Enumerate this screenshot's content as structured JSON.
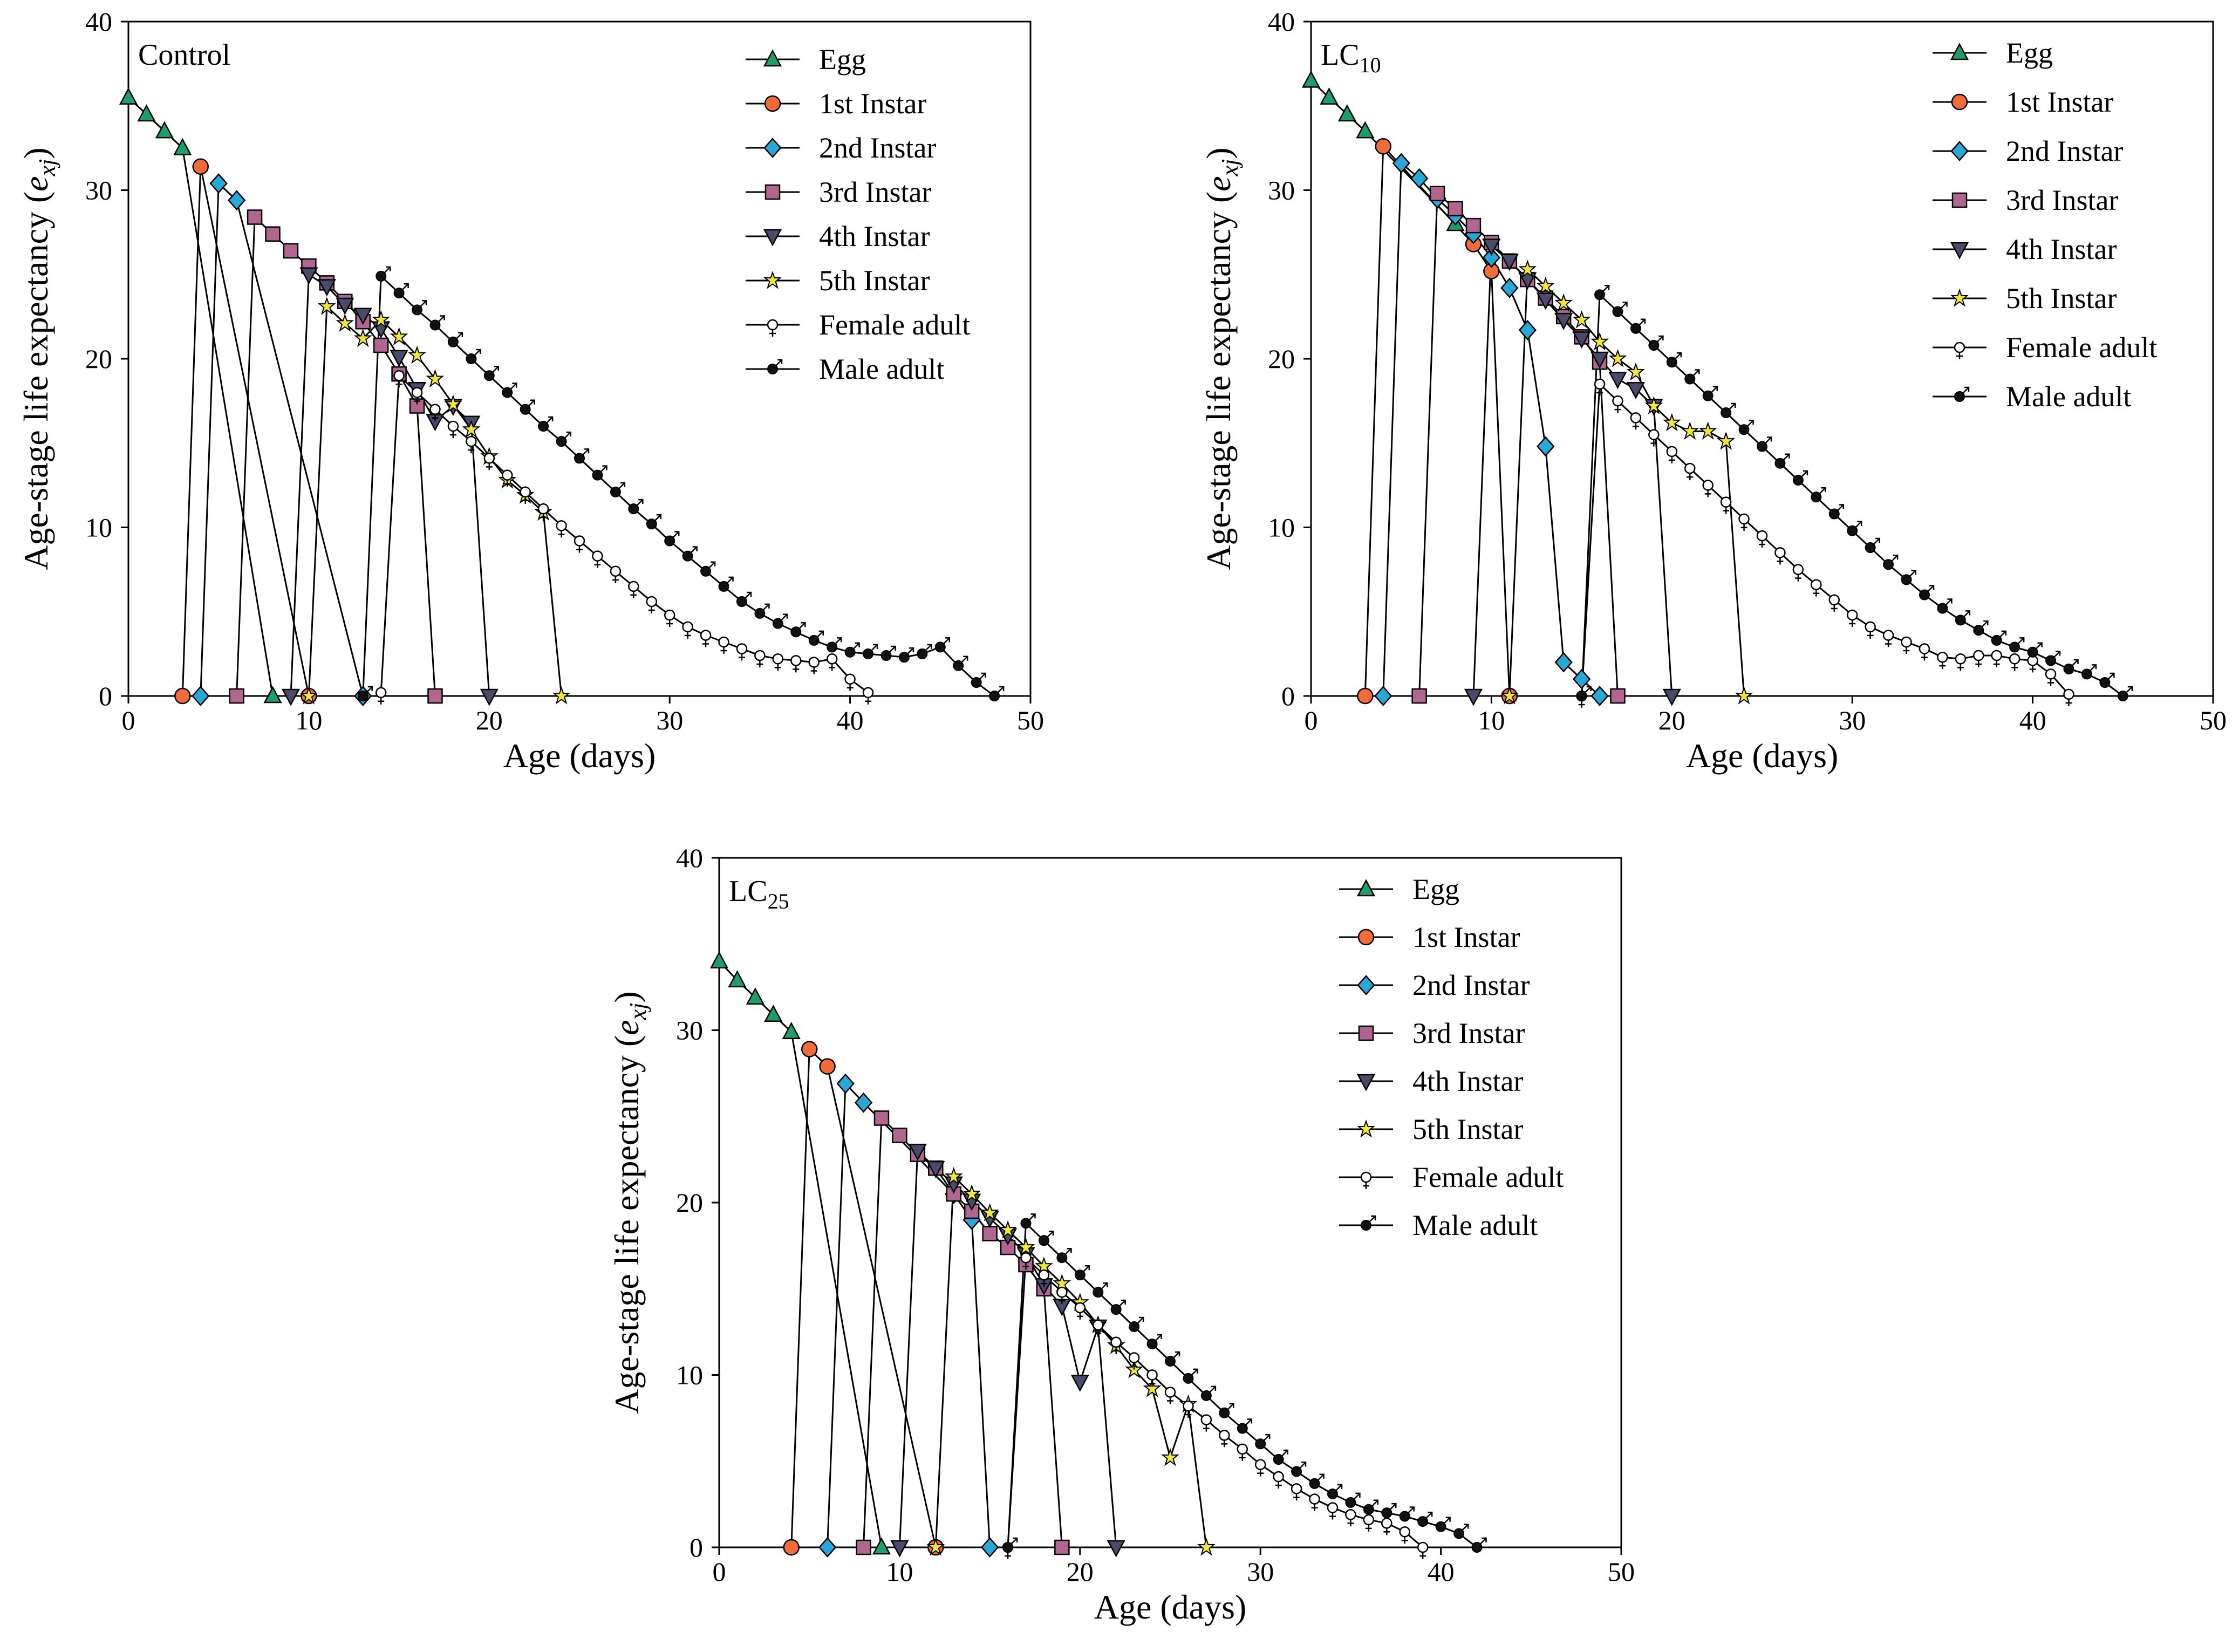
{
  "figure": {
    "ylabel_main": "Age-stage life expectancy (",
    "ylabel_var": "e",
    "ylabel_sub": "xj",
    "ylabel_close": ")",
    "xlabel": "Age (days)"
  },
  "chart_data": [
    {
      "type": "line",
      "title": "Control",
      "title_sub": "",
      "xlabel": "Age (days)",
      "ylabel": "Age-stage life expectancy (exj)",
      "xlim": [
        0,
        50
      ],
      "ylim": [
        0,
        40
      ],
      "xticks": [
        0,
        10,
        20,
        30,
        40,
        50
      ],
      "yticks": [
        0,
        10,
        20,
        30,
        40
      ],
      "legend_position": "top-right",
      "series": [
        {
          "name": "Egg",
          "marker": "triangle",
          "color": "#1f9d6a",
          "x": [
            0,
            1,
            2,
            3,
            8
          ],
          "y": [
            35.5,
            34.5,
            33.5,
            32.5,
            0
          ]
        },
        {
          "name": "1st Instar",
          "marker": "circle",
          "color": "#f26b3a",
          "x": [
            3,
            4,
            10
          ],
          "y": [
            0,
            31.4,
            0
          ]
        },
        {
          "name": "2nd Instar",
          "marker": "diamond",
          "color": "#2aa7d6",
          "x": [
            4,
            5,
            6,
            13
          ],
          "y": [
            0,
            30.4,
            29.4,
            0
          ]
        },
        {
          "name": "3rd Instar",
          "marker": "square",
          "color": "#b0668f",
          "x": [
            6,
            7,
            8,
            9,
            10,
            11,
            12,
            13,
            14,
            15,
            16,
            17
          ],
          "y": [
            0,
            28.4,
            27.4,
            26.4,
            25.5,
            24.5,
            23.4,
            22.2,
            20.8,
            19.1,
            17.2,
            0
          ]
        },
        {
          "name": "4th Instar",
          "marker": "triangle-down",
          "color": "#4a4a6a",
          "x": [
            9,
            10,
            11,
            12,
            13,
            14,
            15,
            16,
            17,
            18,
            19,
            20
          ],
          "y": [
            0,
            25,
            24.3,
            23.2,
            22.6,
            21.8,
            20.1,
            18.2,
            16.3,
            17.2,
            16.2,
            0
          ]
        },
        {
          "name": "5th Instar",
          "marker": "star",
          "color": "#f0e63c",
          "x": [
            10,
            11,
            12,
            13,
            14,
            15,
            16,
            17,
            18,
            19,
            20,
            21,
            22,
            23,
            24
          ],
          "y": [
            0,
            23.1,
            22.1,
            21.2,
            22.3,
            21.3,
            20.2,
            18.8,
            17.3,
            15.8,
            14.2,
            12.8,
            11.9,
            10.9,
            0
          ]
        },
        {
          "name": "Female adult",
          "marker": "female",
          "color": "#ffffff",
          "x": [
            14,
            15,
            16,
            17,
            18,
            19,
            20,
            21,
            22,
            23,
            24,
            25,
            26,
            27,
            28,
            29,
            30,
            31,
            32,
            33,
            34,
            35,
            36,
            37,
            38,
            39,
            40,
            41
          ],
          "y": [
            0.2,
            19,
            18,
            17,
            16,
            15.1,
            14.1,
            13.1,
            12.1,
            11.1,
            10.1,
            9.2,
            8.3,
            7.4,
            6.5,
            5.6,
            4.8,
            4.1,
            3.6,
            3.2,
            2.8,
            2.4,
            2.2,
            2.1,
            2.0,
            2.2,
            1.0,
            0.2
          ]
        },
        {
          "name": "Male adult",
          "marker": "male",
          "color": "#1a1a1a",
          "x": [
            13,
            14,
            15,
            16,
            17,
            18,
            19,
            20,
            21,
            22,
            23,
            24,
            25,
            26,
            27,
            28,
            29,
            30,
            31,
            32,
            33,
            34,
            35,
            36,
            37,
            38,
            39,
            40,
            41,
            42,
            43,
            44,
            45,
            46,
            47,
            48
          ],
          "y": [
            0,
            24.9,
            23.9,
            22.9,
            22,
            21,
            20,
            19,
            18,
            17,
            16,
            15.1,
            14.1,
            13.1,
            12.1,
            11.1,
            10.2,
            9.2,
            8.3,
            7.4,
            6.5,
            5.6,
            4.9,
            4.3,
            3.8,
            3.3,
            2.9,
            2.6,
            2.5,
            2.4,
            2.3,
            2.5,
            2.9,
            1.8,
            0.8,
            0
          ]
        }
      ]
    },
    {
      "type": "line",
      "title": "LC",
      "title_sub": "10",
      "xlabel": "Age (days)",
      "ylabel": "Age-stage life expectancy (exj)",
      "xlim": [
        0,
        50
      ],
      "ylim": [
        0,
        40
      ],
      "xticks": [
        0,
        10,
        20,
        30,
        40,
        50
      ],
      "yticks": [
        0,
        10,
        20,
        30,
        40
      ],
      "legend_position": "top-right",
      "series": [
        {
          "name": "Egg",
          "marker": "triangle",
          "color": "#1f9d6a",
          "x": [
            0,
            1,
            2,
            3,
            8
          ],
          "y": [
            36.5,
            35.5,
            34.5,
            33.5,
            28
          ]
        },
        {
          "name": "1st Instar",
          "marker": "circle",
          "color": "#f26b3a",
          "x": [
            3,
            4,
            9,
            10,
            11
          ],
          "y": [
            0,
            32.6,
            26.8,
            25.2,
            0
          ]
        },
        {
          "name": "2nd Instar",
          "marker": "diamond",
          "color": "#2aa7d6",
          "x": [
            4,
            5,
            6,
            7,
            8,
            9,
            10,
            11,
            12,
            13,
            14,
            15,
            16
          ],
          "y": [
            0,
            31.6,
            30.7,
            29.5,
            28.5,
            27.4,
            26,
            24.2,
            21.7,
            14.8,
            2,
            1,
            0
          ]
        },
        {
          "name": "3rd Instar",
          "marker": "square",
          "color": "#b0668f",
          "x": [
            6,
            7,
            8,
            9,
            10,
            11,
            12,
            13,
            14,
            15,
            16,
            17
          ],
          "y": [
            0,
            29.8,
            28.9,
            27.9,
            26.9,
            25.8,
            24.7,
            23.6,
            22.5,
            21.3,
            19.8,
            0
          ]
        },
        {
          "name": "4th Instar",
          "marker": "triangle-down",
          "color": "#4a4a6a",
          "x": [
            9,
            10,
            11,
            12,
            13,
            14,
            15,
            16,
            17,
            18,
            19,
            20
          ],
          "y": [
            0,
            26.7,
            25.8,
            24.7,
            23.5,
            22.3,
            21.2,
            20,
            18.8,
            18.2,
            17.2,
            0
          ]
        },
        {
          "name": "5th Instar",
          "marker": "star",
          "color": "#f0e63c",
          "x": [
            11,
            12,
            13,
            14,
            15,
            16,
            17,
            18,
            19,
            20,
            21,
            22,
            23,
            24
          ],
          "y": [
            0,
            25.3,
            24.3,
            23.3,
            22.3,
            21,
            20,
            19.2,
            17.2,
            16.2,
            15.7,
            15.7,
            15.1,
            0
          ]
        },
        {
          "name": "Female adult",
          "marker": "female",
          "color": "#ffffff",
          "x": [
            15,
            16,
            17,
            18,
            19,
            20,
            21,
            22,
            23,
            24,
            25,
            26,
            27,
            28,
            29,
            30,
            31,
            32,
            33,
            34,
            35,
            36,
            37,
            38,
            39,
            40,
            41,
            42
          ],
          "y": [
            0,
            18.5,
            17.5,
            16.5,
            15.5,
            14.5,
            13.5,
            12.5,
            11.5,
            10.5,
            9.5,
            8.5,
            7.5,
            6.6,
            5.7,
            4.8,
            4.1,
            3.6,
            3.2,
            2.8,
            2.3,
            2.2,
            2.4,
            2.4,
            2.2,
            2.1,
            1.3,
            0.1
          ]
        },
        {
          "name": "Male adult",
          "marker": "male",
          "color": "#1a1a1a",
          "x": [
            15,
            16,
            17,
            18,
            19,
            20,
            21,
            22,
            23,
            24,
            25,
            26,
            27,
            28,
            29,
            30,
            31,
            32,
            33,
            34,
            35,
            36,
            37,
            38,
            39,
            40,
            41,
            42,
            43,
            44,
            45
          ],
          "y": [
            0,
            23.8,
            22.8,
            21.8,
            20.8,
            19.8,
            18.8,
            17.8,
            16.8,
            15.8,
            14.8,
            13.8,
            12.8,
            11.8,
            10.8,
            9.8,
            8.8,
            7.8,
            6.9,
            6,
            5.2,
            4.5,
            3.9,
            3.3,
            2.9,
            2.6,
            2.1,
            1.6,
            1.3,
            0.8,
            0
          ]
        }
      ]
    },
    {
      "type": "line",
      "title": "LC",
      "title_sub": "25",
      "xlabel": "Age (days)",
      "ylabel": "Age-stage life expectancy (exj)",
      "xlim": [
        0,
        50
      ],
      "ylim": [
        0,
        40
      ],
      "xticks": [
        0,
        10,
        20,
        30,
        40,
        50
      ],
      "yticks": [
        0,
        10,
        20,
        30,
        40
      ],
      "legend_position": "top-right",
      "series": [
        {
          "name": "Egg",
          "marker": "triangle",
          "color": "#1f9d6a",
          "x": [
            0,
            1,
            2,
            3,
            4,
            9
          ],
          "y": [
            34,
            32.9,
            31.9,
            30.9,
            29.9,
            0
          ]
        },
        {
          "name": "1st Instar",
          "marker": "circle",
          "color": "#f26b3a",
          "x": [
            4,
            5,
            6,
            12
          ],
          "y": [
            0,
            28.9,
            27.9,
            0
          ]
        },
        {
          "name": "2nd Instar",
          "marker": "diamond",
          "color": "#2aa7d6",
          "x": [
            6,
            7,
            8,
            13,
            14,
            15
          ],
          "y": [
            0,
            26.9,
            25.8,
            20.5,
            19,
            0
          ]
        },
        {
          "name": "3rd Instar",
          "marker": "square",
          "color": "#b0668f",
          "x": [
            8,
            9,
            10,
            11,
            12,
            13,
            14,
            15,
            16,
            17,
            18,
            19
          ],
          "y": [
            0,
            24.9,
            23.9,
            22.8,
            22,
            20.5,
            19.5,
            18.2,
            17.4,
            16.4,
            15,
            0
          ]
        },
        {
          "name": "4th Instar",
          "marker": "triangle-down",
          "color": "#4a4a6a",
          "x": [
            10,
            11,
            12,
            13,
            14,
            15,
            16,
            17,
            18,
            19,
            20,
            21,
            22
          ],
          "y": [
            0,
            23,
            22,
            21.1,
            20.1,
            19.1,
            18.1,
            17,
            15.2,
            14,
            9.6,
            12.8,
            0
          ]
        },
        {
          "name": "5th Instar",
          "marker": "star",
          "color": "#f0e63c",
          "x": [
            12,
            13,
            14,
            15,
            16,
            17,
            18,
            19,
            20,
            21,
            22,
            23,
            24,
            25,
            26,
            27
          ],
          "y": [
            0,
            21.5,
            20.5,
            19.4,
            18.4,
            17.4,
            16.3,
            15.3,
            14.2,
            12.9,
            11.7,
            10.3,
            9.2,
            5.2,
            8.3,
            0
          ]
        },
        {
          "name": "Female adult",
          "marker": "female",
          "color": "#ffffff",
          "x": [
            16,
            17,
            18,
            19,
            20,
            21,
            22,
            23,
            24,
            25,
            26,
            27,
            28,
            29,
            30,
            31,
            32,
            33,
            34,
            35,
            36,
            37,
            38,
            39
          ],
          "y": [
            0,
            16.8,
            15.8,
            14.8,
            13.9,
            12.9,
            11.9,
            11,
            10,
            9,
            8.2,
            7.4,
            6.5,
            5.7,
            4.8,
            4.1,
            3.4,
            2.8,
            2.3,
            1.9,
            1.6,
            1.4,
            0.9,
            0
          ]
        },
        {
          "name": "Male adult",
          "marker": "male",
          "color": "#1a1a1a",
          "x": [
            16,
            17,
            18,
            19,
            20,
            21,
            22,
            23,
            24,
            25,
            26,
            27,
            28,
            29,
            30,
            31,
            32,
            33,
            34,
            35,
            36,
            37,
            38,
            39,
            40,
            41,
            42
          ],
          "y": [
            0,
            18.8,
            17.8,
            16.8,
            15.8,
            14.8,
            13.8,
            12.8,
            11.8,
            10.8,
            9.8,
            8.8,
            7.8,
            6.9,
            6.0,
            5.1,
            4.4,
            3.7,
            3.1,
            2.6,
            2.2,
            2.0,
            1.8,
            1.5,
            1.2,
            0.8,
            0
          ]
        }
      ]
    }
  ]
}
